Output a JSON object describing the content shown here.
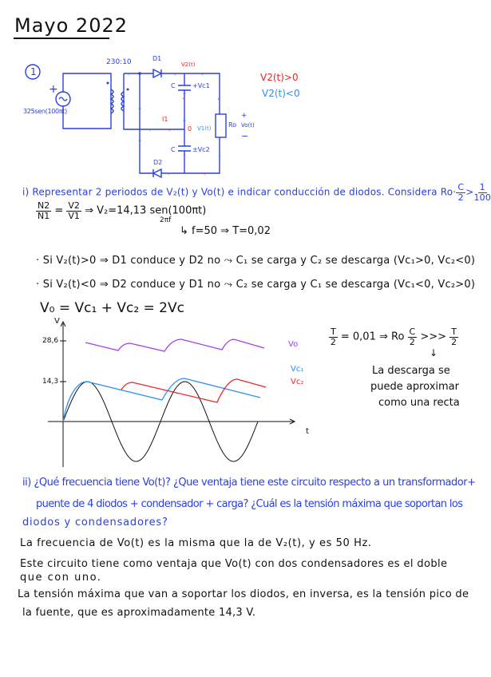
{
  "title": "Mayo 2022",
  "problem_number": "1",
  "circuit": {
    "ratio": "230:10",
    "source_label": "325sen(100πt)",
    "source_plus": "+",
    "d1": "D1",
    "d2": "D2",
    "v2": "V2(t)",
    "i1": "I1",
    "node0": "0",
    "v1": "V1(t)",
    "c_top": "C",
    "vc1": "+Vc1",
    "c_bot": "C",
    "vc2": "±Vc2",
    "ro": "Ro",
    "vo_plus": "+",
    "vo": "Vo(t)",
    "vo_minus": "−",
    "cond_pos": "V2(t)>0",
    "cond_neg": "V2(t)<0"
  },
  "part_i": {
    "question": "i) Representar 2 periodos de V₂(t) y Vo(t) e indicar conducción de diodos. Considera Ro·",
    "question_frac_num": "C",
    "question_frac_den": "2",
    "question_gt": ">",
    "question_frac2_num": "1",
    "question_frac2_den": "100",
    "eq1_n_num": "N2",
    "eq1_n_den": "N1",
    "eq1_v_num": "V2",
    "eq1_v_den": "V1",
    "eq1_rest": "⇒ V₂=14,13 sen(100πt)",
    "eq1_under": "2πf",
    "eq2": "↳ f=50 ⇒ T=0,02",
    "bullet1": "· Si V₂(t)>0 ⇒ D1 conduce y D2 no ⤳ C₁ se carga y C₂ se descarga (Vc₁>0, Vc₂<0)",
    "bullet2": "· Si V₂(t)<0 ⇒ D2 conduce y D1 no ⤳ C₂ se carga y C₁ se descarga (Vc₁<0, Vc₂>0)",
    "eq3": "V₀ = Vc₁ + Vc₂ = 2Vc"
  },
  "graph": {
    "y_axis_label": "V",
    "x_axis_label": "t",
    "tick_high": "28,6",
    "tick_low": "14,3",
    "label_vo": "Vo",
    "label_vc1": "Vc₁",
    "label_vc2": "Vc₂",
    "colors": {
      "v2": "#111111",
      "vc1": "#2f8ff0",
      "vc2": "#e8262b",
      "vo": "#a23ee8"
    }
  },
  "side_note": {
    "t_num": "T",
    "t_den": "2",
    "eq_mid": "= 0,01 ⇒ Ro",
    "c_num": "C",
    "c_den": "2",
    "gg": ">>>",
    "t2_num": "T",
    "t2_den": "2",
    "arrow": "↓",
    "line1": "La descarga se",
    "line2": "puede aproximar",
    "line3": "como una recta"
  },
  "part_ii": {
    "q1": "ii) ¿Qué frecuencia tiene Vo(t)? ¿Que ventaja tiene este circuito respecto a un transformador+",
    "q2": "puente de 4 diodos + condensador + carga? ¿Cuál es la tensión máxima que soportan los",
    "q3": "diodos y condensadores?",
    "a1": "La frecuencia de Vo(t) es la misma que la de V₂(t), y es 50 Hz.",
    "a2": "Este circuito tiene como ventaja que Vo(t) con dos condensadores es el doble",
    "a3": "que con uno.",
    "a4": "La tensión máxima que van a soportar los diodos, en inversa, es la tensión pico de",
    "a5": "la fuente, que es aproximadamente 14,3 V."
  }
}
